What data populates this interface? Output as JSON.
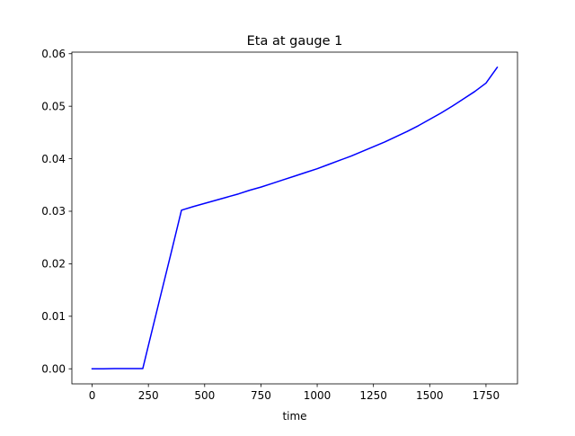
{
  "chart_data": {
    "type": "line",
    "title": "Eta at gauge 1",
    "xlabel": "time",
    "ylabel": "",
    "xlim": [
      -90,
      1890
    ],
    "ylim": [
      -0.00287,
      0.0603
    ],
    "grid": false,
    "xticks": [
      0,
      250,
      500,
      750,
      1000,
      1250,
      1500,
      1750
    ],
    "xtick_labels": [
      "0",
      "250",
      "500",
      "750",
      "1000",
      "1250",
      "1500",
      "1750"
    ],
    "yticks": [
      0.0,
      0.01,
      0.02,
      0.03,
      0.04,
      0.05,
      0.06
    ],
    "ytick_labels": [
      "0.00",
      "0.01",
      "0.02",
      "0.03",
      "0.04",
      "0.05",
      "0.06"
    ],
    "series": [
      {
        "color": "#0000ff",
        "x": [
          0,
          50,
          100,
          150,
          200,
          225,
          260,
          300,
          350,
          397,
          450,
          500,
          550,
          600,
          650,
          700,
          750,
          800,
          850,
          900,
          950,
          1000,
          1050,
          1100,
          1150,
          1200,
          1250,
          1300,
          1350,
          1400,
          1450,
          1500,
          1550,
          1600,
          1650,
          1700,
          1750,
          1800
        ],
        "y": [
          0.0,
          0.0,
          3e-05,
          3e-05,
          3e-05,
          3e-05,
          0.0062,
          0.0132,
          0.0219,
          0.0302,
          0.0309,
          0.0315,
          0.0321,
          0.0327,
          0.0333,
          0.034,
          0.0346,
          0.0353,
          0.036,
          0.0367,
          0.0374,
          0.0381,
          0.0389,
          0.0397,
          0.0405,
          0.0414,
          0.0423,
          0.0432,
          0.0442,
          0.0452,
          0.0463,
          0.0475,
          0.0487,
          0.05,
          0.0514,
          0.0528,
          0.0544,
          0.0574
        ]
      }
    ]
  }
}
